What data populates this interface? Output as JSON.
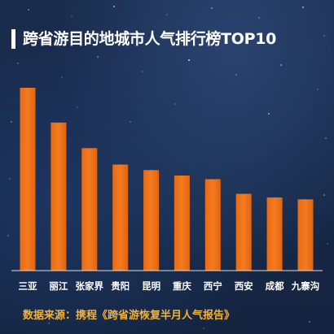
{
  "chart_data": {
    "type": "bar",
    "title": "跨省游目的地城市人气排行榜TOP10",
    "categories": [
      "三亚",
      "丽江",
      "张家界",
      "贵阳",
      "昆明",
      "重庆",
      "西宁",
      "西安",
      "成都",
      "九寨沟"
    ],
    "values": [
      100,
      81,
      67,
      58,
      55,
      52,
      50,
      42,
      40,
      39
    ],
    "ylim": [
      0,
      100
    ],
    "grid": false,
    "legend": "none",
    "bar_color": "#f47b20"
  },
  "footer": {
    "source": "数据来源：携程《跨省游恢复半月人气报告》"
  },
  "colors": {
    "background": "#1a2c4d",
    "title": "#ffffff",
    "source": "#f2b23a",
    "axis": "#d8dce4"
  }
}
